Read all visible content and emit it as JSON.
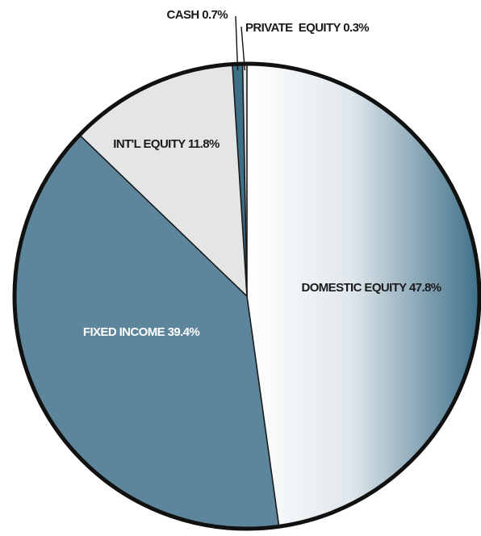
{
  "chart_data": {
    "type": "pie",
    "start_angle_deg": 0,
    "direction": "clockwise",
    "slices": [
      {
        "label": "DOMESTIC EQUITY 47.8%",
        "name": "DOMESTIC EQUITY",
        "value": 47.8,
        "color": "#ffffff",
        "gradient_to": "#3e6f88",
        "label_color": "#1a1a1a"
      },
      {
        "label": "FIXED INCOME 39.4%",
        "name": "FIXED INCOME",
        "value": 39.4,
        "color": "#5d869c",
        "label_color": "#ffffff"
      },
      {
        "label": "INT'L EQUITY 11.8%",
        "name": "INT'L EQUITY",
        "value": 11.8,
        "color": "#e4e5e7",
        "label_color": "#1a1a1a"
      },
      {
        "label": "CASH 0.7%",
        "name": "CASH",
        "value": 0.7,
        "color": "#3e6f88",
        "label_color": "#1a1a1a"
      },
      {
        "label": "PRIVATE  EQUITY 0.3%",
        "name": "PRIVATE EQUITY",
        "value": 0.3,
        "color": "#e4e5e7",
        "label_color": "#1a1a1a"
      }
    ],
    "colors": {
      "outline": "#111111",
      "divider": "#1a1a1a"
    }
  }
}
